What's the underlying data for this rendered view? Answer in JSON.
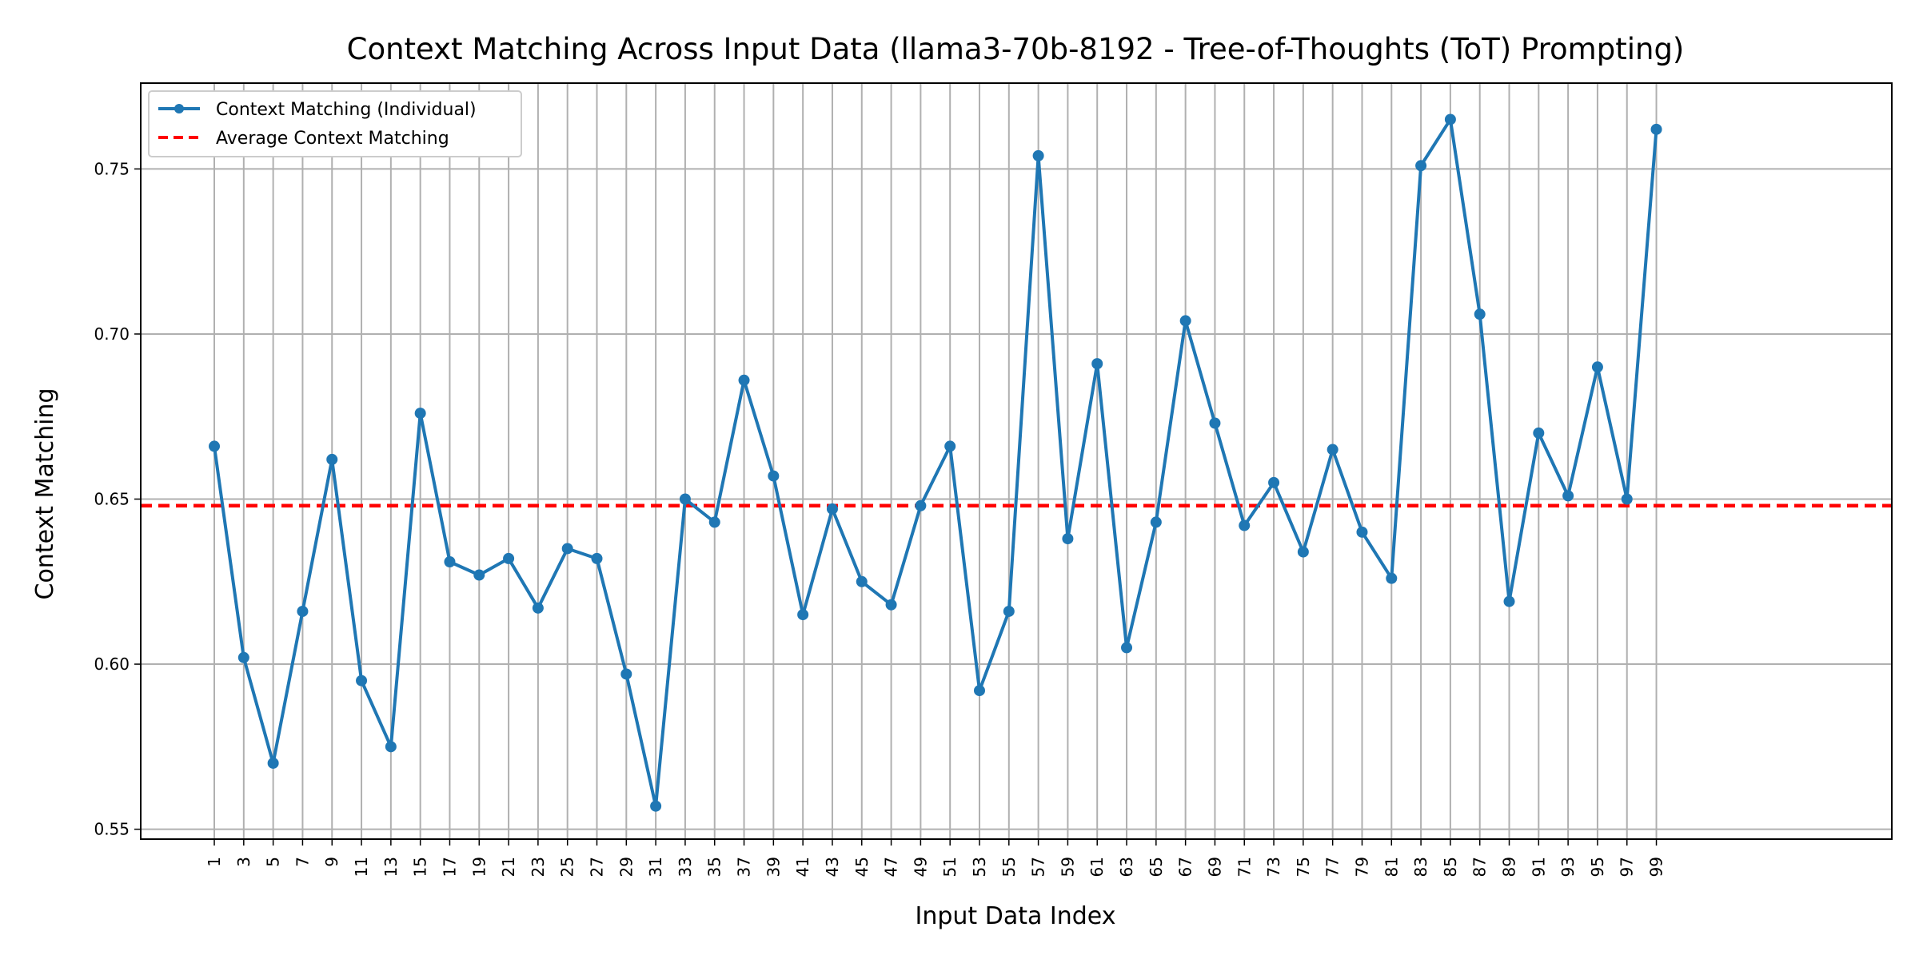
{
  "chart_data": {
    "type": "line",
    "title": "Context Matching Across Input Data (llama3-70b-8192 - Tree-of-Thoughts (ToT) Prompting)",
    "xlabel": "Input Data Index",
    "ylabel": "Context Matching",
    "xlim": [
      -4,
      115
    ],
    "ylim": [
      0.547,
      0.776
    ],
    "x_ticks": [
      1,
      3,
      5,
      7,
      9,
      11,
      13,
      15,
      17,
      19,
      21,
      23,
      25,
      27,
      29,
      31,
      33,
      35,
      37,
      39,
      41,
      43,
      45,
      47,
      49,
      51,
      53,
      55,
      57,
      59,
      61,
      63,
      65,
      67,
      69,
      71,
      73,
      75,
      77,
      79,
      81,
      83,
      85,
      87,
      89,
      91,
      93,
      95,
      97,
      99
    ],
    "y_ticks": [
      0.55,
      0.6,
      0.65,
      0.7,
      0.75
    ],
    "y_tick_labels": [
      "0.55",
      "0.60",
      "0.65",
      "0.70",
      "0.75"
    ],
    "grid": true,
    "legend_position": "top-left",
    "series": [
      {
        "name": "Context Matching (Individual)",
        "color": "#1f77b4",
        "style": "line-with-markers",
        "x": [
          1,
          3,
          5,
          7,
          9,
          11,
          13,
          15,
          17,
          19,
          21,
          23,
          25,
          27,
          29,
          31,
          33,
          35,
          37,
          39,
          41,
          43,
          45,
          47,
          49,
          51,
          53,
          55,
          57,
          59,
          61,
          63,
          65,
          67,
          69,
          71,
          73,
          75,
          77,
          79,
          81,
          83,
          85,
          87,
          89,
          91,
          93,
          95,
          97,
          99
        ],
        "values": [
          0.666,
          0.602,
          0.57,
          0.616,
          0.662,
          0.595,
          0.575,
          0.676,
          0.631,
          0.627,
          0.632,
          0.617,
          0.635,
          0.632,
          0.597,
          0.557,
          0.65,
          0.643,
          0.686,
          0.657,
          0.615,
          0.647,
          0.625,
          0.618,
          0.648,
          0.666,
          0.592,
          0.616,
          0.754,
          0.638,
          0.691,
          0.605,
          0.643,
          0.704,
          0.673,
          0.642,
          0.655,
          0.634,
          0.665,
          0.64,
          0.626,
          0.751,
          0.765,
          0.706,
          0.619,
          0.67,
          0.651,
          0.69,
          0.65,
          0.762
        ]
      },
      {
        "name": "Average Context Matching",
        "color": "#ff0000",
        "style": "dashed-horizontal",
        "value": 0.648
      }
    ]
  }
}
